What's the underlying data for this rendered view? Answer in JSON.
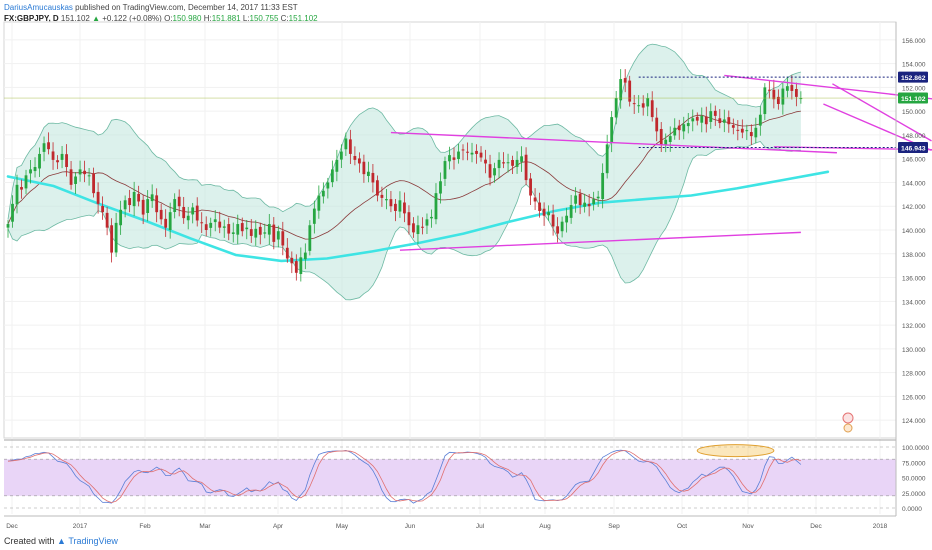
{
  "header": {
    "author": "DariusAmucauskas",
    "published": "published on TradingView.com, December 14, 2017 11:33 EST",
    "symbol": "FX:GBPJPY, D",
    "last": "151.102",
    "change_arrow": "▲",
    "change": "+0.122 (+0.08%)",
    "o_label": "O:",
    "o_val": "150.980",
    "h_label": "H:",
    "h_val": "151.881",
    "l_label": "L:",
    "l_val": "150.755",
    "c_label": "C:",
    "c_val": "151.102"
  },
  "footer": {
    "created_with": "Created with",
    "brand": "TradingView"
  },
  "colors": {
    "up": "#26a641",
    "down": "#c0282d",
    "bb_fill": "#bfe6dc",
    "bb_line": "#6db9a3",
    "ma200": "#3ee4e4",
    "ma20": "#8a3b3b",
    "trendline": "#e040e0",
    "stoch_bg": "#e9d5f7",
    "stoch_k": "#5a7fd6",
    "stoch_d": "#e07070",
    "level_line": "#1a237e",
    "last_badge": "#26a641"
  },
  "chart_data": [
    {
      "type": "candlestick",
      "symbol": "FX:GBPJPY",
      "timeframe": "D",
      "x_ticks": [
        "Dec",
        "2017",
        "Feb",
        "Mar",
        "Apr",
        "May",
        "Jun",
        "Jul",
        "Aug",
        "Sep",
        "Oct",
        "Nov",
        "Dec",
        "2018"
      ],
      "y_ticks": [
        "156.000",
        "154.000",
        "152.000",
        "150.000",
        "148.000",
        "146.000",
        "144.000",
        "142.000",
        "140.000",
        "138.000",
        "136.000",
        "134.000",
        "132.000",
        "130.000",
        "128.000",
        "126.000",
        "124.000"
      ],
      "ylim": [
        122.5,
        157.5
      ],
      "price_labels": [
        {
          "text": "152.862",
          "value": 152.862,
          "style": "level"
        },
        {
          "text": "151.102",
          "value": 151.102,
          "style": "last"
        },
        {
          "text": "146.943",
          "value": 146.943,
          "style": "level"
        }
      ],
      "closes": [
        140.5,
        142.2,
        143.8,
        143.4,
        144.6,
        145.1,
        145.3,
        146.4,
        147.3,
        146.8,
        145.9,
        145.7,
        146.4,
        145.3,
        143.8,
        144.5,
        145.1,
        144.7,
        144.6,
        143.1,
        142.2,
        141.5,
        140.2,
        138.1,
        140.6,
        141.7,
        142.5,
        142.1,
        143.2,
        142.4,
        141.3,
        142.6,
        143.0,
        141.5,
        140.9,
        140.2,
        141.5,
        142.6,
        142.0,
        141.0,
        141.2,
        141.9,
        140.8,
        140.6,
        140.0,
        140.6,
        140.9,
        140.2,
        140.3,
        139.7,
        139.8,
        140.5,
        139.9,
        140.2,
        139.5,
        140.1,
        139.6,
        139.8,
        140.5,
        139.0,
        139.9,
        138.7,
        137.6,
        137.2,
        136.4,
        137.7,
        138.1,
        140.4,
        141.8,
        142.9,
        143.3,
        144.0,
        145.1,
        145.9,
        146.6,
        147.7,
        146.4,
        145.9,
        145.6,
        144.7,
        144.9,
        144.0,
        142.9,
        142.7,
        142.6,
        142.0,
        141.6,
        142.5,
        141.4,
        140.4,
        139.8,
        140.4,
        140.2,
        140.9,
        141.1,
        143.1,
        144.1,
        145.8,
        146.3,
        145.9,
        146.6,
        146.7,
        146.5,
        146.5,
        146.4,
        146.1,
        145.6,
        144.4,
        145.2,
        145.9,
        145.6,
        145.7,
        145.4,
        145.9,
        146.2,
        144.2,
        142.9,
        142.4,
        141.6,
        141.2,
        141.5,
        140.3,
        139.7,
        140.7,
        141.2,
        142.1,
        142.9,
        142.1,
        142.3,
        142.0,
        142.6,
        142.8,
        144.8,
        147.2,
        149.5,
        151.1,
        152.7,
        152.4,
        150.8,
        150.6,
        150.5,
        150.3,
        151.1,
        149.5,
        148.3,
        147.2,
        147.6,
        147.9,
        148.6,
        148.4,
        148.9,
        149.0,
        149.4,
        149.2,
        149.6,
        148.9,
        150.0,
        149.6,
        149.0,
        149.3,
        148.9,
        148.6,
        148.4,
        148.2,
        148.4,
        147.9,
        148.6,
        149.7,
        152.0,
        151.8,
        151.0,
        150.6,
        151.9,
        152.1,
        151.7,
        151.2,
        151.1
      ],
      "indicators": {
        "bollinger_bands": {
          "period": 20,
          "stdev": 2
        },
        "sma_20": {
          "period": 20
        },
        "sma_200": {
          "start_x": 0,
          "end_x": 182,
          "values": [
            144.5,
            143.7,
            142.2,
            140.8,
            139.3,
            137.9,
            137.4,
            137.6,
            138.2,
            138.9,
            139.7,
            140.7,
            141.6,
            142.3,
            142.6,
            142.9,
            143.5,
            144.2,
            144.9
          ]
        },
        "trendlines": [
          {
            "x": [
              85,
              184
            ],
            "y": [
              148.2,
              146.5
            ]
          },
          {
            "x": [
              87,
              176
            ],
            "y": [
              138.3,
              139.8
            ]
          },
          {
            "x": [
              159,
              213
            ],
            "y": [
              153.0,
              150.7
            ]
          },
          {
            "x": [
              170,
              213
            ],
            "y": [
              147.0,
              146.7
            ]
          },
          {
            "x": [
              183,
              205
            ],
            "y": [
              152.3,
              147.5
            ]
          },
          {
            "x": [
              181,
              205
            ],
            "y": [
              150.6,
              146.7
            ]
          }
        ]
      }
    },
    {
      "type": "line",
      "name": "Stochastic",
      "y_ticks": [
        "100.0000",
        "75.0000",
        "50.0000",
        "25.0000",
        "0.0000"
      ],
      "ylim": [
        0,
        100
      ],
      "bands": [
        80,
        20
      ],
      "highlight_ellipse_x": [
        153,
        170
      ]
    }
  ]
}
